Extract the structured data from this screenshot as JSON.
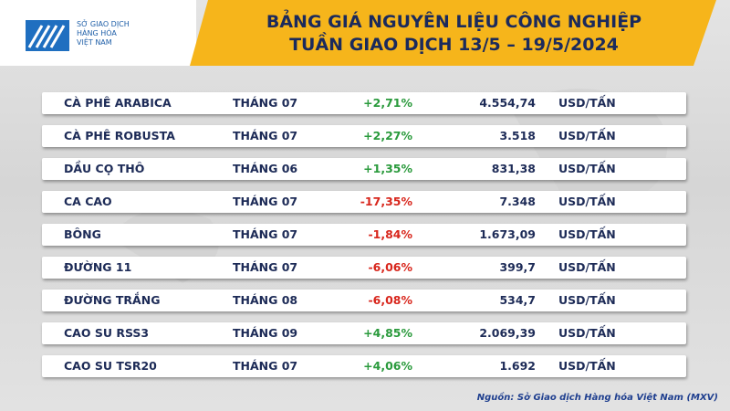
{
  "logo": {
    "lines": [
      "SỞ GIAO DỊCH",
      "HÀNG HÓA",
      "VIỆT NAM"
    ]
  },
  "header": {
    "title": [
      "BẢNG GIÁ NGUYÊN LIỆU CÔNG NGHIỆP",
      "TUẦN GIAO DỊCH 13/5 – 19/5/2024"
    ]
  },
  "table": {
    "rows": [
      [
        "CÀ PHÊ ARABICA",
        "THÁNG 07",
        "+2,71%",
        "4.554,74",
        "USD/TẤN"
      ],
      [
        "CÀ PHÊ ROBUSTA",
        "THÁNG 07",
        "+2,27%",
        "3.518",
        "USD/TẤN"
      ],
      [
        "DẦU CỌ THÔ",
        "THÁNG 06",
        "+1,35%",
        "831,38",
        "USD/TẤN"
      ],
      [
        "CA CAO",
        "THÁNG 07",
        "-17,35%",
        "7.348",
        "USD/TẤN"
      ],
      [
        "BÔNG",
        "THÁNG 07",
        "-1,84%",
        "1.673,09",
        "USD/TẤN"
      ],
      [
        "ĐƯỜNG 11",
        "THÁNG 07",
        "-6,06%",
        "399,7",
        "USD/TẤN"
      ],
      [
        "ĐƯỜNG TRẮNG",
        "THÁNG 08",
        "-6,08%",
        "534,7",
        "USD/TẤN"
      ],
      [
        "CAO SU RSS3",
        "THÁNG 09",
        "+4,85%",
        "2.069,39",
        "USD/TẤN"
      ],
      [
        "CAO SU TSR20",
        "THÁNG 07",
        "+4,06%",
        "1.692",
        "USD/TẤN"
      ]
    ]
  },
  "source": "Nguồn: Sở Giao dịch Hàng hóa Việt Nam (MXV)"
}
